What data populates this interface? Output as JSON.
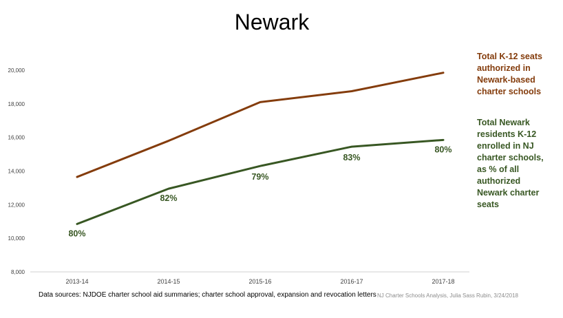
{
  "title": "Newark",
  "chart_data": {
    "type": "line",
    "title": "Newark",
    "categories": [
      "2013-14",
      "2014-15",
      "2015-16",
      "2016-17",
      "2017-18"
    ],
    "ylim": [
      8000,
      20000
    ],
    "yticks": [
      "8,000",
      "10,000",
      "12,000",
      "14,000",
      "16,000",
      "18,000",
      "20,000"
    ],
    "ytick_values": [
      8000,
      10000,
      12000,
      14000,
      16000,
      18000,
      20000
    ],
    "grid": false,
    "legend_placement": "right",
    "series": [
      {
        "name": "Total K-12 seats authorized in Newark-based charter schools",
        "color": "#843c0c",
        "values": [
          13650,
          15800,
          18100,
          18750,
          19850
        ]
      },
      {
        "name": "Total Newark residents K-12 enrolled in NJ charter schools, as % of all authorized Newark charter seats",
        "color": "#385723",
        "values": [
          10850,
          12950,
          14300,
          15450,
          15850
        ],
        "data_labels": [
          "80%",
          "82%",
          "79%",
          "83%",
          "80%"
        ]
      }
    ]
  },
  "legend": {
    "seats_lines": [
      "Total K-12 seats",
      "authorized in",
      "Newark-based",
      "charter schools"
    ],
    "enrolled_lines": [
      "Total Newark",
      "residents K-12",
      "enrolled in NJ",
      "charter schools,",
      "as % of all",
      "authorized",
      "Newark charter",
      "seats"
    ]
  },
  "footer": {
    "sources": "Data sources: NJDOE charter school aid summaries; charter school approval, expansion and revocation letters",
    "credit": "NJ Charter Schools Analysis, Julia Sass Rubin, 3/24/2018"
  }
}
